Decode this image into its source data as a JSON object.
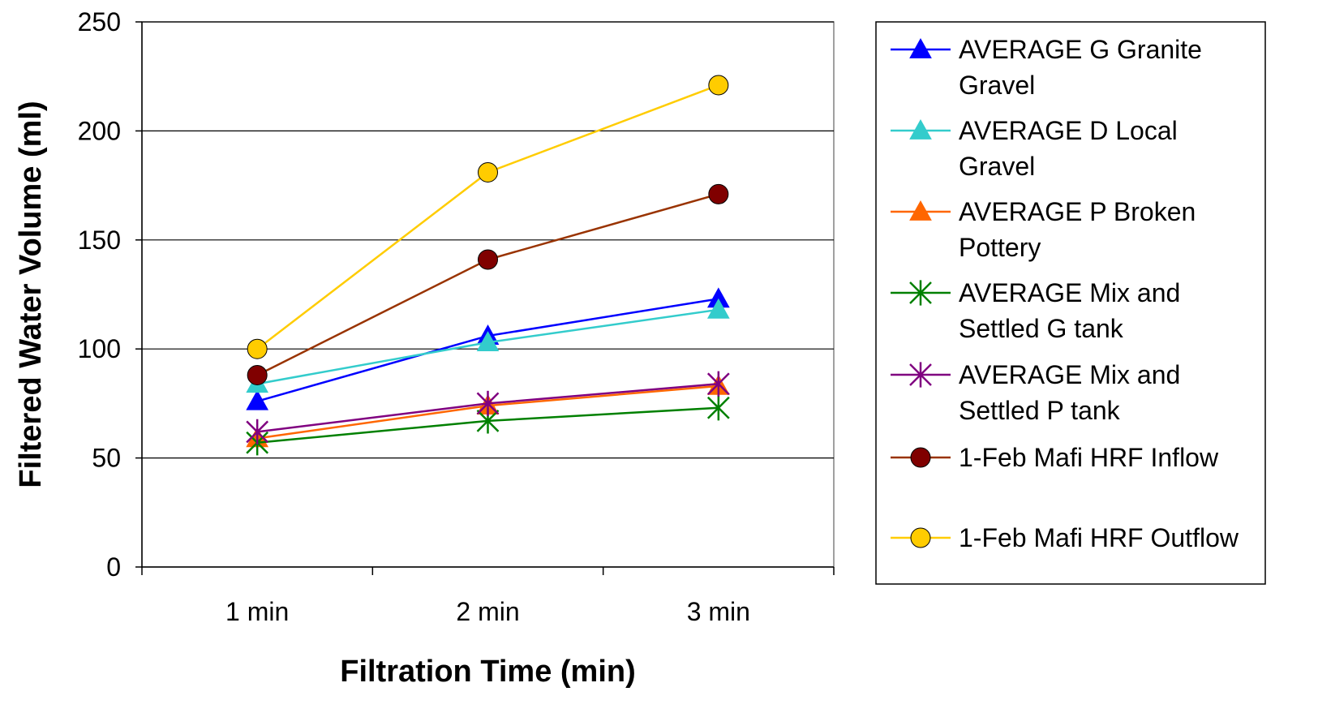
{
  "chart_data": {
    "type": "line",
    "title": "",
    "xlabel": "Filtration Time (min)",
    "ylabel": "Filtered Water Volume (ml)",
    "categories": [
      "1 min",
      "2 min",
      "3 min"
    ],
    "ylim": [
      0,
      250
    ],
    "yticks": [
      0,
      50,
      100,
      150,
      200,
      250
    ],
    "grid": true,
    "legend_position": "right",
    "series": [
      {
        "name": "AVERAGE G Granite Gravel",
        "values": [
          76,
          106,
          123
        ],
        "color": "#0000FF",
        "marker": "triangle"
      },
      {
        "name": "AVERAGE D Local Gravel",
        "values": [
          84,
          103,
          118
        ],
        "color": "#33CCCC",
        "marker": "triangle"
      },
      {
        "name": "AVERAGE P Broken Pottery",
        "values": [
          59,
          74,
          83
        ],
        "color": "#FF6600",
        "marker": "triangle"
      },
      {
        "name": "AVERAGE Mix and Settled G tank",
        "values": [
          57,
          67,
          73
        ],
        "color": "#008000",
        "marker": "asterisk"
      },
      {
        "name": "AVERAGE Mix and Settled P tank",
        "values": [
          62,
          75,
          84
        ],
        "color": "#800080",
        "marker": "asterisk"
      },
      {
        "name": "1-Feb Mafi HRF Inflow",
        "values": [
          88,
          141,
          171
        ],
        "color": "#993300",
        "marker": "circle",
        "marker_fill": "#800000"
      },
      {
        "name": "1-Feb Mafi HRF Outflow",
        "values": [
          100,
          181,
          221
        ],
        "color": "#FFCC00",
        "marker": "circle",
        "marker_fill": "#FFCC00"
      }
    ],
    "legend_labels": [
      [
        "AVERAGE G Granite",
        "Gravel"
      ],
      [
        "AVERAGE D Local",
        "Gravel"
      ],
      [
        "AVERAGE P Broken",
        "Pottery"
      ],
      [
        "AVERAGE Mix and",
        "Settled G tank"
      ],
      [
        "AVERAGE Mix and",
        "Settled P tank"
      ],
      [
        "1-Feb Mafi HRF Inflow"
      ],
      [
        "1-Feb Mafi HRF Outflow"
      ]
    ]
  }
}
